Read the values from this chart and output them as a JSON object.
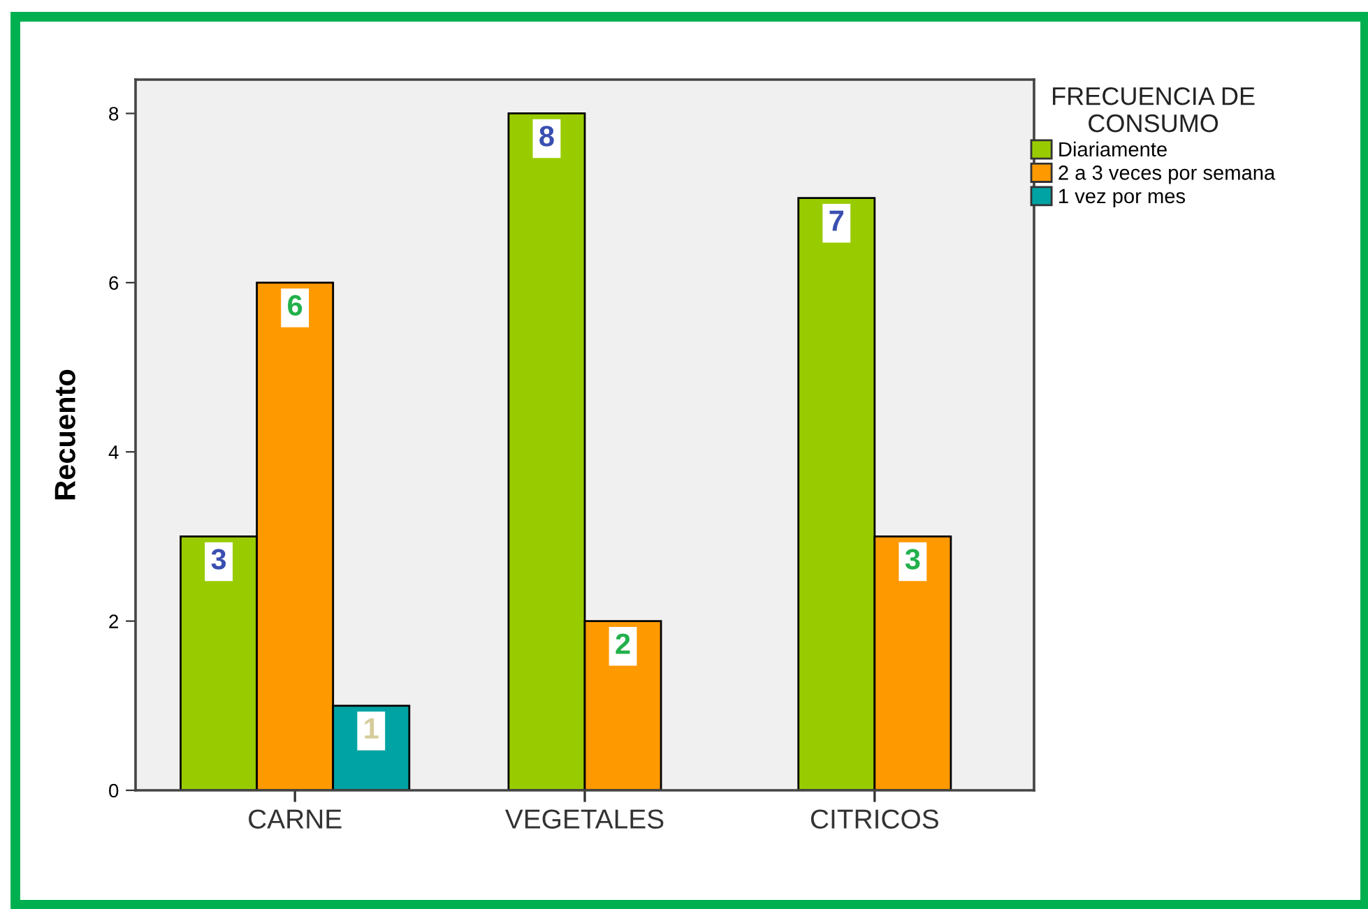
{
  "chart_data": {
    "type": "bar",
    "categories": [
      "CARNE",
      "VEGETALES",
      "CITRICOS"
    ],
    "series": [
      {
        "name": "Diariamente",
        "color": "#99cc00",
        "values": [
          3,
          8,
          7
        ]
      },
      {
        "name": "2 a 3 veces por semana",
        "color": "#ff9900",
        "values": [
          6,
          2,
          3
        ]
      },
      {
        "name": "1 vez por mes",
        "color": "#00a3a3",
        "values": [
          1,
          null,
          null
        ]
      }
    ],
    "ylabel": "Recuento",
    "legend_title": "FRECUENCIA DE\nCONSUMO",
    "legend": "top right",
    "ylim": [
      0,
      8.4
    ],
    "yticks": [
      0,
      2,
      4,
      6,
      8
    ],
    "data_labels": true,
    "grid": false
  }
}
